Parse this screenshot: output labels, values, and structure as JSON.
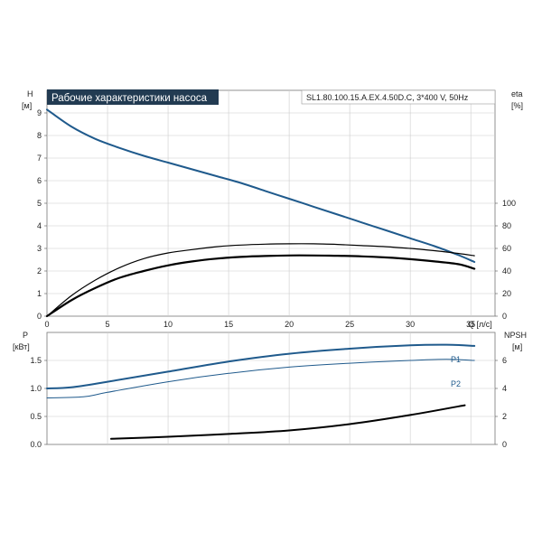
{
  "chart_data": [
    {
      "type": "line",
      "title": "Рабочие характеристики насоса",
      "subtitle": "SL1.80.100.15.A.EX.4.50D.C, 3*400 V, 50Hz",
      "ylabel": "H",
      "yunit": "[м]",
      "y2label": "eta",
      "y2unit": "[%]",
      "xlabel": "Q [л/с]",
      "xlim": [
        0,
        37
      ],
      "ylim": [
        0,
        10
      ],
      "y2lim": [
        0,
        100
      ],
      "xticks": [
        "0",
        "5",
        "10",
        "15",
        "20",
        "25",
        "30",
        "35"
      ],
      "yticks": [
        "0",
        "1",
        "2",
        "3",
        "4",
        "5",
        "6",
        "7",
        "8",
        "9"
      ],
      "y2ticks": [
        "0",
        "20",
        "40",
        "60",
        "80",
        "100"
      ],
      "grid": true,
      "series": [
        {
          "axis": "left",
          "color": "#1f5a8c",
          "points": [
            [
              0,
              9.15
            ],
            [
              2,
              8.4
            ],
            [
              4,
              7.85
            ],
            [
              6,
              7.45
            ],
            [
              8,
              7.1
            ],
            [
              10,
              6.8
            ],
            [
              12,
              6.5
            ],
            [
              14,
              6.2
            ],
            [
              16,
              5.9
            ],
            [
              18,
              5.55
            ],
            [
              20,
              5.2
            ],
            [
              22,
              4.85
            ],
            [
              24,
              4.5
            ],
            [
              26,
              4.15
            ],
            [
              28,
              3.8
            ],
            [
              30,
              3.45
            ],
            [
              32,
              3.1
            ],
            [
              34,
              2.7
            ],
            [
              35.3,
              2.4
            ]
          ]
        },
        {
          "axis": "right",
          "color": "#000000",
          "points": [
            [
              0,
              0
            ],
            [
              2,
              18
            ],
            [
              4,
              32
            ],
            [
              6,
              43
            ],
            [
              8,
              51
            ],
            [
              10,
              56
            ],
            [
              12,
              59
            ],
            [
              14,
              61.5
            ],
            [
              16,
              63
            ],
            [
              18,
              63.8
            ],
            [
              20,
              64.1
            ],
            [
              22,
              64.1
            ],
            [
              24,
              63.5
            ],
            [
              26,
              62.5
            ],
            [
              28,
              61.5
            ],
            [
              30,
              60
            ],
            [
              32,
              58
            ],
            [
              34,
              55.5
            ],
            [
              35.3,
              53.5
            ]
          ]
        },
        {
          "axis": "right",
          "color": "#000000",
          "points": [
            [
              0,
              0
            ],
            [
              2,
              14
            ],
            [
              4,
              25
            ],
            [
              6,
              34
            ],
            [
              8,
              40
            ],
            [
              10,
              45
            ],
            [
              12,
              48.5
            ],
            [
              14,
              51
            ],
            [
              16,
              52.5
            ],
            [
              18,
              53.3
            ],
            [
              20,
              53.8
            ],
            [
              22,
              53.8
            ],
            [
              24,
              53.5
            ],
            [
              26,
              53
            ],
            [
              28,
              52
            ],
            [
              30,
              50.5
            ],
            [
              32,
              48.5
            ],
            [
              34,
              46
            ],
            [
              35.3,
              42
            ]
          ]
        }
      ]
    },
    {
      "type": "line",
      "ylabel": "P",
      "yunit": "[кВт]",
      "y2label": "NPSH",
      "y2unit": "[м]",
      "xlim": [
        0,
        37
      ],
      "ylim": [
        0,
        2
      ],
      "y2lim": [
        0,
        8
      ],
      "yticks": [
        "0.0",
        "0.5",
        "1.0",
        "1.5"
      ],
      "y2ticks": [
        "0",
        "2",
        "4",
        "6"
      ],
      "grid": true,
      "series": [
        {
          "name": "P1",
          "axis": "left",
          "color": "#1f5a8c",
          "points": [
            [
              0,
              1.0
            ],
            [
              2,
              1.02
            ],
            [
              5,
              1.12
            ],
            [
              10,
              1.3
            ],
            [
              15,
              1.48
            ],
            [
              20,
              1.62
            ],
            [
              25,
              1.71
            ],
            [
              30,
              1.77
            ],
            [
              33,
              1.78
            ],
            [
              35.3,
              1.76
            ]
          ]
        },
        {
          "name": "P2",
          "axis": "left",
          "color": "#1f5a8c",
          "points": [
            [
              0,
              0.83
            ],
            [
              3,
              0.85
            ],
            [
              5,
              0.93
            ],
            [
              10,
              1.12
            ],
            [
              15,
              1.27
            ],
            [
              20,
              1.38
            ],
            [
              25,
              1.45
            ],
            [
              30,
              1.5
            ],
            [
              33,
              1.52
            ],
            [
              35.3,
              1.5
            ]
          ]
        },
        {
          "name": "NPSH",
          "axis": "right",
          "color": "#000000",
          "points": [
            [
              5.3,
              0.4
            ],
            [
              10,
              0.55
            ],
            [
              15,
              0.75
            ],
            [
              20,
              1.0
            ],
            [
              25,
              1.45
            ],
            [
              30,
              2.1
            ],
            [
              34.5,
              2.8
            ]
          ]
        }
      ]
    }
  ]
}
